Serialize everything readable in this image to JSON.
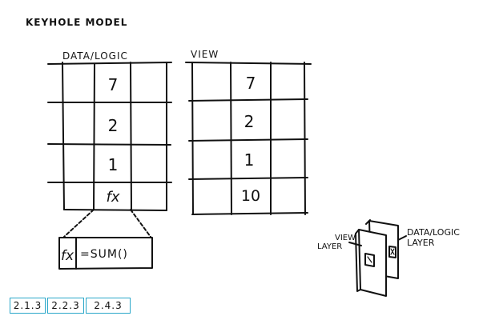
{
  "title": "KEYHOLE MODEL",
  "data_logic_grid": {
    "label": "DATA/LOGIC",
    "cells": [
      "7",
      "2",
      "1",
      "fx"
    ]
  },
  "view_grid": {
    "label": "VIEW",
    "cells": [
      "7",
      "2",
      "1",
      "10"
    ]
  },
  "formula": {
    "symbol": "fx",
    "text": "=SUM()"
  },
  "layers": {
    "view_label_line1": "VIEW",
    "view_label_line2": "LAYER",
    "data_label_line1": "DATA/LOGIC",
    "data_label_line2": "LAYER"
  },
  "section_links": [
    "2.1.3",
    "2.2.3",
    "2.4.3"
  ]
}
